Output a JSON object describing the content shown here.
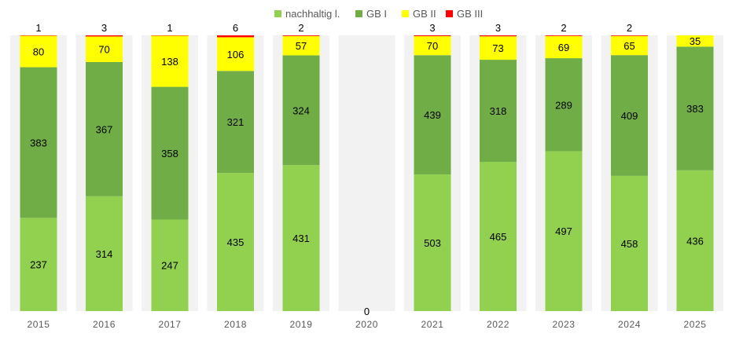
{
  "chart_data": {
    "type": "bar",
    "stacked": "100%",
    "legend_position": "top-right",
    "grid": false,
    "categories": [
      "2015",
      "2016",
      "2017",
      "2018",
      "2019",
      "2020",
      "2021",
      "2022",
      "2023",
      "2024",
      "2025"
    ],
    "series": [
      {
        "name": "nachhaltig l.",
        "color": "#92d050",
        "values": [
          237,
          314,
          247,
          435,
          431,
          0,
          503,
          465,
          497,
          458,
          436
        ]
      },
      {
        "name": "GB I",
        "color": "#70ad47",
        "values": [
          383,
          367,
          358,
          321,
          324,
          0,
          439,
          318,
          289,
          409,
          383
        ]
      },
      {
        "name": "GB II",
        "color": "#ffff00",
        "values": [
          80,
          70,
          138,
          106,
          57,
          0,
          70,
          73,
          69,
          65,
          35
        ]
      },
      {
        "name": "GB III",
        "color": "#ff0000",
        "values": [
          1,
          3,
          1,
          6,
          2,
          0,
          3,
          3,
          2,
          2,
          0
        ]
      }
    ],
    "top_labels": [
      "1",
      "3",
      "1",
      "6",
      "2",
      "0",
      "3",
      "3",
      "2",
      "2",
      ""
    ],
    "band_color": "#f2f2f2"
  }
}
